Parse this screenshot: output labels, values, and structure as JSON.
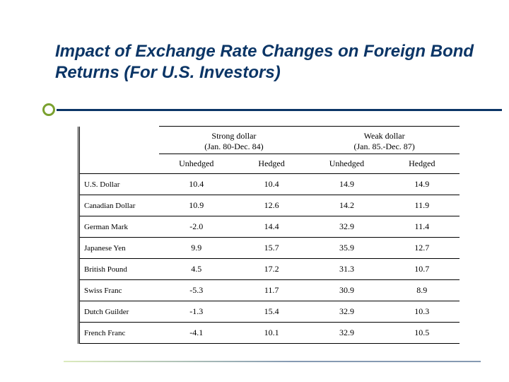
{
  "title": "Impact of Exchange Rate Changes on Foreign Bond Returns (For U.S. Investors)",
  "colors": {
    "title_text": "#0b3566",
    "divider_line": "#0b3566",
    "bullet_border": "#7aa12f",
    "background": "#ffffff",
    "table_border": "#000000"
  },
  "typography": {
    "title_fontsize": 24,
    "title_style": "italic bold",
    "table_font": "Times New Roman",
    "table_fontsize": 12
  },
  "table": {
    "periods": {
      "strong": {
        "label": "Strong dollar",
        "range": "(Jan. 80-Dec. 84)"
      },
      "weak": {
        "label": "Weak dollar",
        "range": "(Jan. 85.-Dec. 87)"
      }
    },
    "subheaders": {
      "unhedged": "Unhedged",
      "hedged": "Hedged"
    },
    "rows": [
      {
        "label": "U.S. Dollar",
        "v": [
          "10.4",
          "10.4",
          "14.9",
          "14.9"
        ]
      },
      {
        "label": "Canadian Dollar",
        "v": [
          "10.9",
          "12.6",
          "14.2",
          "11.9"
        ]
      },
      {
        "label": "German Mark",
        "v": [
          "-2.0",
          "14.4",
          "32.9",
          "11.4"
        ]
      },
      {
        "label": "Japanese Yen",
        "v": [
          "9.9",
          "15.7",
          "35.9",
          "12.7"
        ]
      },
      {
        "label": "British Pound",
        "v": [
          "4.5",
          "17.2",
          "31.3",
          "10.7"
        ]
      },
      {
        "label": "Swiss Franc",
        "v": [
          "-5.3",
          "11.7",
          "30.9",
          "8.9"
        ]
      },
      {
        "label": "Dutch Guilder",
        "v": [
          "-1.3",
          "15.4",
          "32.9",
          "10.3"
        ]
      },
      {
        "label": "French Franc",
        "v": [
          "-4.1",
          "10.1",
          "32.9",
          "10.5"
        ]
      }
    ]
  }
}
